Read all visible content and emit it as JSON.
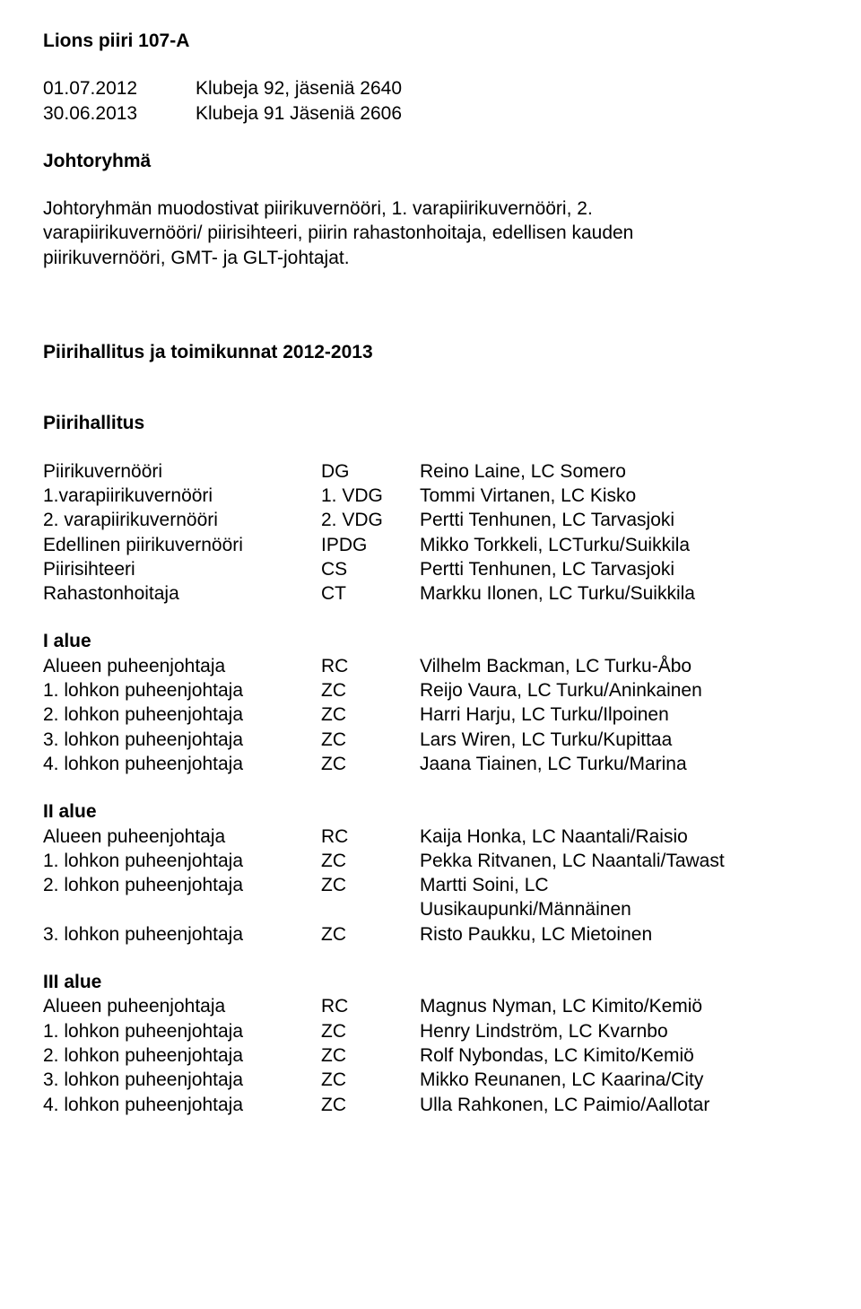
{
  "header": {
    "title": "Lions piiri 107-A"
  },
  "stats_rows": [
    {
      "date": "01.07.2012",
      "text": "Klubeja 92, jäseniä 2640"
    },
    {
      "date": "30.06.2013",
      "text": "Klubeja 91 Jäseniä 2606"
    }
  ],
  "johtoryhma": {
    "heading": "Johtoryhmä",
    "line1": "Johtoryhmän muodostivat piirikuvernööri, 1. varapiirikuvernööri, 2.",
    "line2": "varapiirikuvernööri/ piirisihteeri, piirin rahastonhoitaja, edellisen kauden",
    "line3": "piirikuvernööri, GMT- ja GLT-johtajat."
  },
  "section_heading": "Piirihallitus ja toimikunnat 2012-2013",
  "piirihallitus": {
    "heading": "Piirihallitus",
    "rows": [
      {
        "role": "Piirikuvernööri",
        "abbr": "DG",
        "name": "Reino Laine, LC Somero"
      },
      {
        "role": "1.varapiirikuvernööri",
        "abbr": "1. VDG",
        "name": "Tommi Virtanen, LC Kisko"
      },
      {
        "role": "2. varapiirikuvernööri",
        "abbr": "2. VDG",
        "name": "Pertti Tenhunen, LC Tarvasjoki"
      },
      {
        "role": "Edellinen piirikuvernööri",
        "abbr": "IPDG",
        "name": "Mikko Torkkeli, LCTurku/Suikkila"
      },
      {
        "role": "Piirisihteeri",
        "abbr": "CS",
        "name": "Pertti Tenhunen, LC Tarvasjoki"
      },
      {
        "role": "Rahastonhoitaja",
        "abbr": "CT",
        "name": "Markku Ilonen, LC Turku/Suikkila"
      }
    ]
  },
  "alue1": {
    "heading": "I alue",
    "rows": [
      {
        "role": "Alueen puheenjohtaja",
        "abbr": "RC",
        "name": "Vilhelm Backman, LC Turku-Åbo"
      },
      {
        "role": "1. lohkon puheenjohtaja",
        "abbr": "ZC",
        "name": "Reijo Vaura, LC Turku/Aninkainen"
      },
      {
        "role": "2. lohkon puheenjohtaja",
        "abbr": "ZC",
        "name": "Harri Harju, LC Turku/Ilpoinen"
      },
      {
        "role": "3. lohkon puheenjohtaja",
        "abbr": "ZC",
        "name": "Lars Wiren, LC Turku/Kupittaa"
      },
      {
        "role": "4. lohkon puheenjohtaja",
        "abbr": "ZC",
        "name": "Jaana Tiainen, LC Turku/Marina"
      }
    ]
  },
  "alue2": {
    "heading": "II alue",
    "rows": [
      {
        "role": "Alueen puheenjohtaja",
        "abbr": "RC",
        "name": "Kaija Honka, LC Naantali/Raisio"
      },
      {
        "role": "1. lohkon puheenjohtaja",
        "abbr": "ZC",
        "name": "Pekka Ritvanen, LC Naantali/Tawast"
      },
      {
        "role": "2. lohkon puheenjohtaja",
        "abbr": "ZC",
        "name": "Martti Soini, LC"
      },
      {
        "role": "",
        "abbr": "",
        "name": "Uusikaupunki/Männäinen"
      },
      {
        "role": "3. lohkon puheenjohtaja",
        "abbr": "ZC",
        "name": "Risto Paukku, LC Mietoinen"
      }
    ]
  },
  "alue3": {
    "heading": "III alue",
    "rows": [
      {
        "role": "Alueen puheenjohtaja",
        "abbr": "RC",
        "name": "Magnus Nyman, LC Kimito/Kemiö"
      },
      {
        "role": "1. lohkon puheenjohtaja",
        "abbr": "ZC",
        "name": "Henry Lindström, LC Kvarnbo"
      },
      {
        "role": "2. lohkon puheenjohtaja",
        "abbr": "ZC",
        "name": "Rolf Nybondas, LC Kimito/Kemiö"
      },
      {
        "role": "3. lohkon puheenjohtaja",
        "abbr": "ZC",
        "name": "Mikko Reunanen, LC Kaarina/City"
      },
      {
        "role": "4. lohkon puheenjohtaja",
        "abbr": "ZC",
        "name": "Ulla Rahkonen, LC Paimio/Aallotar"
      }
    ]
  }
}
